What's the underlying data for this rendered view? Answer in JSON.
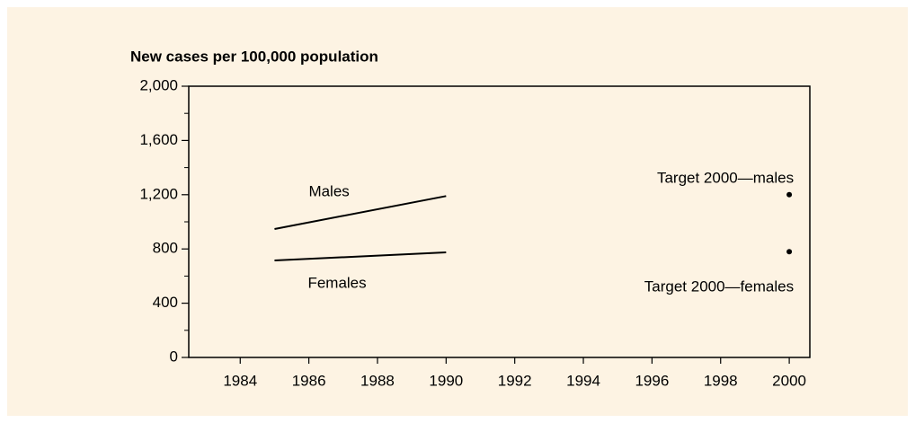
{
  "chart_data": {
    "type": "line",
    "title": "New cases per 100,000 population",
    "x": [
      1985,
      1990
    ],
    "series": [
      {
        "name": "Males",
        "color": "#000000",
        "values": [
          947,
          1190
        ]
      },
      {
        "name": "Females",
        "color": "#000000",
        "values": [
          715,
          775
        ]
      }
    ],
    "targets": {
      "x": [
        2000,
        2000
      ],
      "values": [
        1200,
        780
      ],
      "labels": [
        "Target 2000—males",
        "Target 2000—females"
      ]
    },
    "xlim": [
      1982.5,
      2000.6
    ],
    "xticks": [
      1984,
      1986,
      1988,
      1990,
      1992,
      1994,
      1996,
      1998,
      2000
    ],
    "ylim": [
      0,
      2000
    ],
    "yticks": [
      0,
      {
        "value": 400,
        "label": "400"
      },
      {
        "value": 800,
        "label": "800"
      },
      {
        "value": 1200,
        "label": "1,200"
      },
      {
        "value": 1600,
        "label": "1,600"
      },
      {
        "value": 2000,
        "label": "2,000"
      }
    ],
    "yminorticks": [
      200,
      600,
      1000,
      1400,
      1800
    ]
  }
}
